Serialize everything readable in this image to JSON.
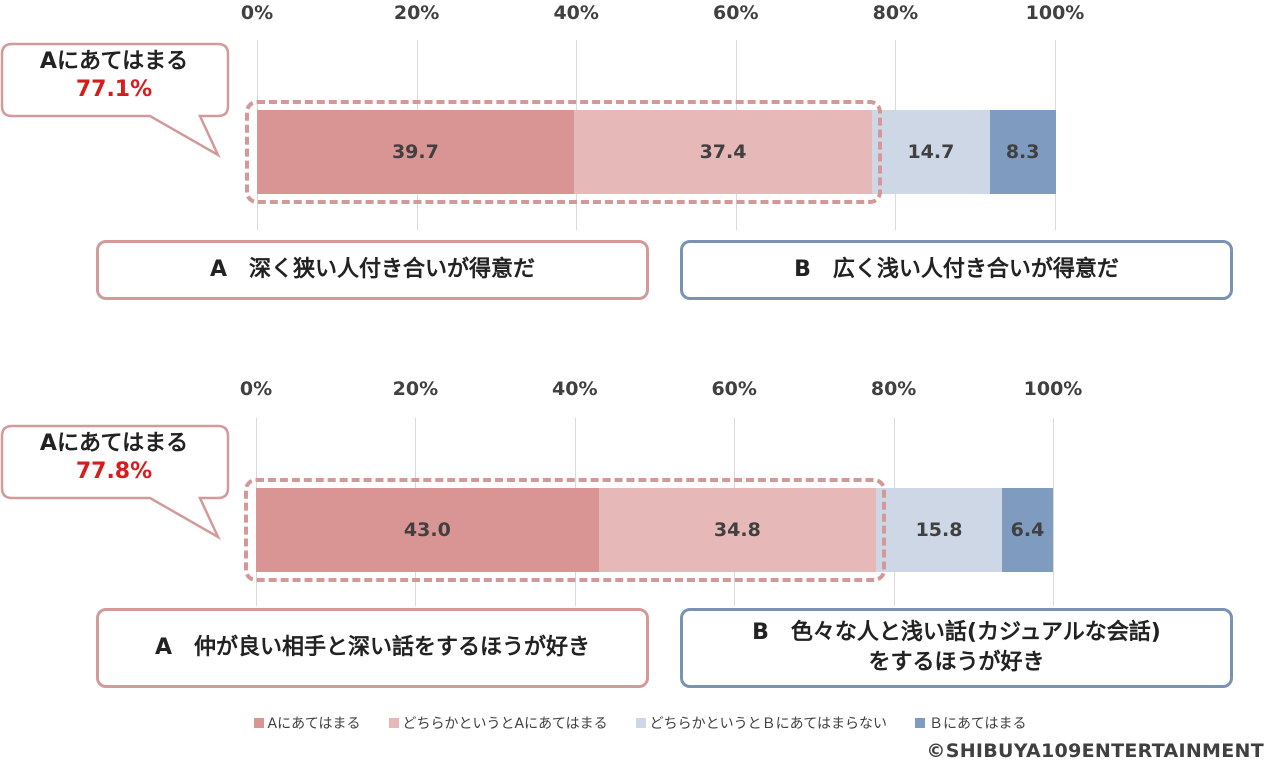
{
  "colors": {
    "a": "#d99594",
    "a_lean": "#e6b9b8",
    "b_lean": "#cdd7e6",
    "b": "#7f9bc0",
    "callout_border": "#d39a9a",
    "callout_pct": "#d81b1b"
  },
  "chart_data": [
    {
      "type": "bar",
      "orientation": "horizontal",
      "stacked": true,
      "xlim": [
        0,
        100
      ],
      "x_ticks": [
        "0%",
        "20%",
        "40%",
        "60%",
        "80%",
        "100%"
      ],
      "grid": true,
      "categories": [
        ""
      ],
      "series": [
        {
          "name": "Aにあてはまる",
          "values": [
            39.7
          ]
        },
        {
          "name": "どちらかというとAにあてはまる",
          "values": [
            37.4
          ]
        },
        {
          "name": "どちらかというとＢにあてはまらない",
          "values": [
            14.7
          ]
        },
        {
          "name": "Ｂにあてはまる",
          "values": [
            8.3
          ]
        }
      ],
      "annotations": {
        "callout_label": "Aにあてはまる",
        "callout_value": "77.1%",
        "statement_a": "A　深く狭い人付き合いが得意だ",
        "statement_b": "B　広く浅い人付き合いが得意だ"
      }
    },
    {
      "type": "bar",
      "orientation": "horizontal",
      "stacked": true,
      "xlim": [
        0,
        100
      ],
      "x_ticks": [
        "0%",
        "20%",
        "40%",
        "60%",
        "80%",
        "100%"
      ],
      "grid": true,
      "categories": [
        ""
      ],
      "series": [
        {
          "name": "Aにあてはまる",
          "values": [
            43.0
          ]
        },
        {
          "name": "どちらかというとAにあてはまる",
          "values": [
            34.8
          ]
        },
        {
          "name": "どちらかというとＢにあてはまらない",
          "values": [
            15.8
          ]
        },
        {
          "name": "Ｂにあてはまる",
          "values": [
            6.4
          ]
        }
      ],
      "annotations": {
        "callout_label": "Aにあてはまる",
        "callout_value": "77.8%",
        "statement_a": "A　仲が良い相手と深い話をするほうが好き",
        "statement_b_line1": "B　色々な人と浅い話(カジュアルな会話)",
        "statement_b_line2": "をするほうが好き"
      }
    }
  ],
  "legend": [
    {
      "label": "Aにあてはまる",
      "color": "#d99594"
    },
    {
      "label": "どちらかというとAにあてはまる",
      "color": "#e6b9b8"
    },
    {
      "label": "どちらかというとＢにあてはまらない",
      "color": "#cdd7e6"
    },
    {
      "label": "Ｂにあてはまる",
      "color": "#7f9bc0"
    }
  ],
  "credit": "©SHIBUYA109ENTERTAINMENT"
}
